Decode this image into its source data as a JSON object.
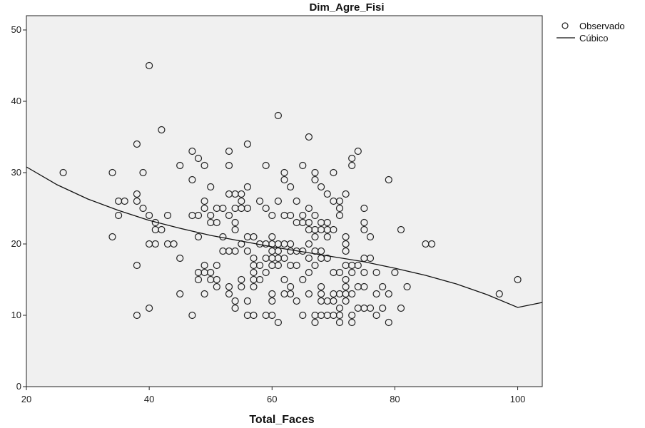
{
  "chart_data": {
    "type": "scatter",
    "title": "Dim_Agre_Fisi",
    "xlabel": "Total_Faces",
    "ylabel": "",
    "xlim": [
      20,
      104
    ],
    "ylim": [
      0,
      52
    ],
    "x_ticks": [
      20,
      40,
      60,
      80,
      100
    ],
    "y_ticks": [
      0,
      10,
      20,
      30,
      40,
      50
    ],
    "grid": false,
    "legend_position": "outside-top-right",
    "plot_background": "#f0f0f0",
    "point_color": "#222222",
    "line_color": "#111111",
    "legend": [
      {
        "label": "Observado",
        "marker": "circle"
      },
      {
        "label": "Cúbico",
        "marker": "line"
      }
    ],
    "series": [
      {
        "name": "Observado",
        "type": "scatter",
        "points": [
          [
            26,
            30
          ],
          [
            34,
            30
          ],
          [
            34,
            21
          ],
          [
            35,
            26
          ],
          [
            35,
            24
          ],
          [
            36,
            26
          ],
          [
            38,
            34
          ],
          [
            38,
            27
          ],
          [
            38,
            26
          ],
          [
            38,
            17
          ],
          [
            38,
            10
          ],
          [
            39,
            30
          ],
          [
            39,
            25
          ],
          [
            40,
            45
          ],
          [
            40,
            24
          ],
          [
            40,
            20
          ],
          [
            40,
            11
          ],
          [
            41,
            23
          ],
          [
            41,
            22
          ],
          [
            41,
            20
          ],
          [
            42,
            36
          ],
          [
            42,
            22
          ],
          [
            43,
            24
          ],
          [
            43,
            20
          ],
          [
            44,
            20
          ],
          [
            45,
            31
          ],
          [
            45,
            18
          ],
          [
            45,
            13
          ],
          [
            47,
            33
          ],
          [
            47,
            29
          ],
          [
            47,
            24
          ],
          [
            47,
            10
          ],
          [
            48,
            32
          ],
          [
            48,
            24
          ],
          [
            48,
            21
          ],
          [
            48,
            16
          ],
          [
            48,
            15
          ],
          [
            49,
            31
          ],
          [
            49,
            26
          ],
          [
            49,
            25
          ],
          [
            49,
            17
          ],
          [
            49,
            16
          ],
          [
            49,
            13
          ],
          [
            50,
            28
          ],
          [
            50,
            24
          ],
          [
            50,
            23
          ],
          [
            50,
            16
          ],
          [
            50,
            15
          ],
          [
            51,
            25
          ],
          [
            51,
            23
          ],
          [
            51,
            17
          ],
          [
            51,
            15
          ],
          [
            51,
            14
          ],
          [
            52,
            25
          ],
          [
            52,
            21
          ],
          [
            52,
            19
          ],
          [
            53,
            33
          ],
          [
            53,
            31
          ],
          [
            53,
            27
          ],
          [
            53,
            24
          ],
          [
            53,
            19
          ],
          [
            53,
            14
          ],
          [
            53,
            13
          ],
          [
            54,
            27
          ],
          [
            54,
            25
          ],
          [
            54,
            23
          ],
          [
            54,
            22
          ],
          [
            54,
            19
          ],
          [
            54,
            12
          ],
          [
            54,
            11
          ],
          [
            55,
            27
          ],
          [
            55,
            26
          ],
          [
            55,
            25
          ],
          [
            55,
            20
          ],
          [
            55,
            15
          ],
          [
            55,
            14
          ],
          [
            56,
            34
          ],
          [
            56,
            28
          ],
          [
            56,
            25
          ],
          [
            56,
            21
          ],
          [
            56,
            19
          ],
          [
            56,
            12
          ],
          [
            56,
            10
          ],
          [
            57,
            21
          ],
          [
            57,
            18
          ],
          [
            57,
            17
          ],
          [
            57,
            16
          ],
          [
            57,
            15
          ],
          [
            57,
            14
          ],
          [
            57,
            10
          ],
          [
            58,
            26
          ],
          [
            58,
            20
          ],
          [
            58,
            17
          ],
          [
            58,
            15
          ],
          [
            59,
            31
          ],
          [
            59,
            25
          ],
          [
            59,
            20
          ],
          [
            59,
            18
          ],
          [
            59,
            16
          ],
          [
            59,
            10
          ],
          [
            60,
            24
          ],
          [
            60,
            21
          ],
          [
            60,
            20
          ],
          [
            60,
            19
          ],
          [
            60,
            18
          ],
          [
            60,
            17
          ],
          [
            60,
            13
          ],
          [
            60,
            12
          ],
          [
            60,
            10
          ],
          [
            61,
            38
          ],
          [
            61,
            26
          ],
          [
            61,
            20
          ],
          [
            61,
            19
          ],
          [
            61,
            18
          ],
          [
            61,
            17
          ],
          [
            61,
            9
          ],
          [
            62,
            30
          ],
          [
            62,
            29
          ],
          [
            62,
            24
          ],
          [
            62,
            20
          ],
          [
            62,
            18
          ],
          [
            62,
            15
          ],
          [
            62,
            13
          ],
          [
            63,
            28
          ],
          [
            63,
            24
          ],
          [
            63,
            20
          ],
          [
            63,
            19
          ],
          [
            63,
            17
          ],
          [
            63,
            14
          ],
          [
            63,
            13
          ],
          [
            64,
            26
          ],
          [
            64,
            23
          ],
          [
            64,
            19
          ],
          [
            64,
            17
          ],
          [
            64,
            12
          ],
          [
            65,
            31
          ],
          [
            65,
            24
          ],
          [
            65,
            23
          ],
          [
            65,
            19
          ],
          [
            65,
            15
          ],
          [
            65,
            10
          ],
          [
            66,
            35
          ],
          [
            66,
            25
          ],
          [
            66,
            23
          ],
          [
            66,
            22
          ],
          [
            66,
            20
          ],
          [
            66,
            18
          ],
          [
            66,
            16
          ],
          [
            66,
            13
          ],
          [
            67,
            30
          ],
          [
            67,
            29
          ],
          [
            67,
            24
          ],
          [
            67,
            22
          ],
          [
            67,
            21
          ],
          [
            67,
            19
          ],
          [
            67,
            17
          ],
          [
            67,
            10
          ],
          [
            67,
            9
          ],
          [
            68,
            28
          ],
          [
            68,
            23
          ],
          [
            68,
            22
          ],
          [
            68,
            19
          ],
          [
            68,
            18
          ],
          [
            68,
            14
          ],
          [
            68,
            13
          ],
          [
            68,
            12
          ],
          [
            68,
            10
          ],
          [
            69,
            27
          ],
          [
            69,
            23
          ],
          [
            69,
            22
          ],
          [
            69,
            21
          ],
          [
            69,
            18
          ],
          [
            69,
            12
          ],
          [
            69,
            10
          ],
          [
            70,
            30
          ],
          [
            70,
            26
          ],
          [
            70,
            22
          ],
          [
            70,
            16
          ],
          [
            70,
            13
          ],
          [
            70,
            12
          ],
          [
            70,
            10
          ],
          [
            71,
            26
          ],
          [
            71,
            25
          ],
          [
            71,
            24
          ],
          [
            71,
            16
          ],
          [
            71,
            13
          ],
          [
            71,
            11
          ],
          [
            71,
            10
          ],
          [
            71,
            9
          ],
          [
            72,
            27
          ],
          [
            72,
            21
          ],
          [
            72,
            20
          ],
          [
            72,
            19
          ],
          [
            72,
            17
          ],
          [
            72,
            15
          ],
          [
            72,
            14
          ],
          [
            72,
            13
          ],
          [
            72,
            12
          ],
          [
            73,
            32
          ],
          [
            73,
            31
          ],
          [
            73,
            17
          ],
          [
            73,
            16
          ],
          [
            73,
            13
          ],
          [
            73,
            10
          ],
          [
            73,
            9
          ],
          [
            74,
            33
          ],
          [
            74,
            17
          ],
          [
            74,
            14
          ],
          [
            74,
            11
          ],
          [
            75,
            25
          ],
          [
            75,
            23
          ],
          [
            75,
            22
          ],
          [
            75,
            18
          ],
          [
            75,
            16
          ],
          [
            75,
            14
          ],
          [
            75,
            11
          ],
          [
            76,
            21
          ],
          [
            76,
            18
          ],
          [
            76,
            11
          ],
          [
            77,
            16
          ],
          [
            77,
            13
          ],
          [
            77,
            10
          ],
          [
            78,
            14
          ],
          [
            78,
            11
          ],
          [
            79,
            29
          ],
          [
            79,
            13
          ],
          [
            79,
            9
          ],
          [
            80,
            16
          ],
          [
            81,
            22
          ],
          [
            81,
            11
          ],
          [
            82,
            14
          ],
          [
            85,
            20
          ],
          [
            86,
            20
          ],
          [
            97,
            13
          ],
          [
            100,
            15
          ]
        ]
      },
      {
        "name": "Cúbico",
        "type": "line",
        "points": [
          [
            20,
            30.8
          ],
          [
            25,
            28.3
          ],
          [
            30,
            26.3
          ],
          [
            35,
            24.7
          ],
          [
            40,
            23.3
          ],
          [
            45,
            22.2
          ],
          [
            50,
            21.2
          ],
          [
            55,
            20.4
          ],
          [
            60,
            19.6
          ],
          [
            65,
            18.9
          ],
          [
            70,
            18.2
          ],
          [
            75,
            17.5
          ],
          [
            80,
            16.6
          ],
          [
            85,
            15.6
          ],
          [
            90,
            14.4
          ],
          [
            95,
            12.9
          ],
          [
            100,
            11.1
          ],
          [
            104,
            11.8
          ]
        ]
      }
    ]
  }
}
